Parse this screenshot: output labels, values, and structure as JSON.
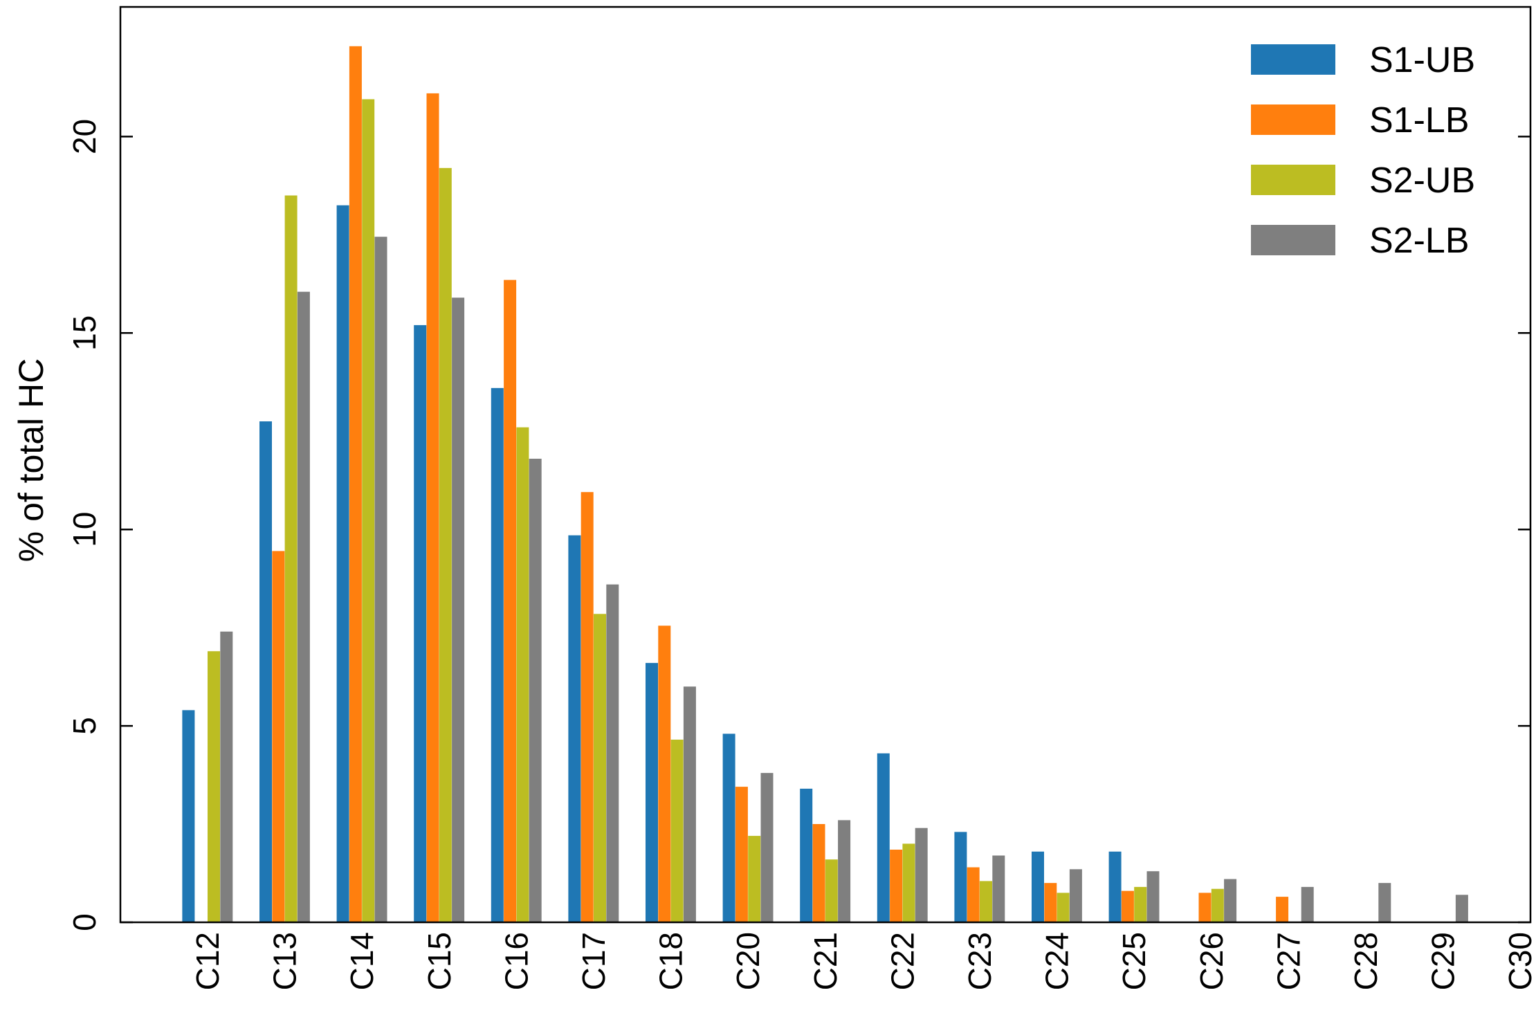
{
  "chart_data": {
    "type": "bar",
    "title": "",
    "xlabel": "",
    "ylabel": "% of total HC",
    "ylim": [
      0,
      23.3
    ],
    "yticks": [
      0,
      5,
      10,
      15,
      20
    ],
    "grid": false,
    "legend_position": "top-right",
    "categories": [
      "C12",
      "C13",
      "C14",
      "C15",
      "C16",
      "C17",
      "C18",
      "C20",
      "C21",
      "C22",
      "C23",
      "C24",
      "C25",
      "C26",
      "C27",
      "C28",
      "C29",
      "C30"
    ],
    "series": [
      {
        "name": "S1-UB",
        "color": "#1f77b4",
        "values": [
          5.4,
          12.75,
          18.25,
          15.2,
          13.6,
          9.85,
          6.6,
          4.8,
          3.4,
          4.3,
          2.3,
          1.8,
          1.8,
          0,
          0,
          0,
          0,
          0
        ]
      },
      {
        "name": "S1-LB",
        "color": "#ff7f0e",
        "values": [
          0,
          9.45,
          22.3,
          21.1,
          16.35,
          10.95,
          7.55,
          3.45,
          2.5,
          1.85,
          1.4,
          1.0,
          0.8,
          0.75,
          0.65,
          0,
          0,
          0
        ]
      },
      {
        "name": "S2-UB",
        "color": "#bcbd22",
        "values": [
          6.9,
          18.5,
          20.95,
          19.2,
          12.6,
          7.85,
          4.65,
          2.2,
          1.6,
          2.0,
          1.05,
          0.75,
          0.9,
          0.85,
          0,
          0,
          0,
          0
        ]
      },
      {
        "name": "S2-LB",
        "color": "#7f7f7f",
        "values": [
          7.4,
          16.05,
          17.45,
          15.9,
          11.8,
          8.6,
          6.0,
          3.8,
          2.6,
          2.4,
          1.7,
          1.35,
          1.3,
          1.1,
          0.9,
          1.0,
          0.7,
          0
        ]
      }
    ]
  }
}
